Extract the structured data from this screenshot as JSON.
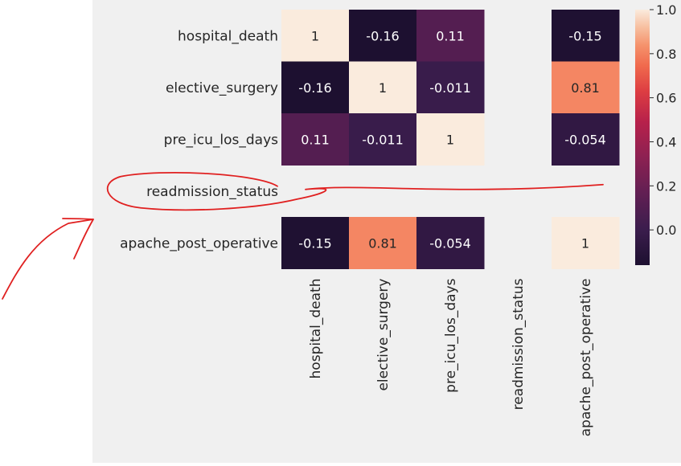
{
  "chart_data": {
    "type": "heatmap",
    "row_labels": [
      "hospital_death",
      "elective_surgery",
      "pre_icu_los_days",
      "readmission_status",
      "apache_post_operative"
    ],
    "col_labels": [
      "hospital_death",
      "elective_surgery",
      "pre_icu_los_days",
      "readmission_status",
      "apache_post_operative"
    ],
    "values": [
      [
        1,
        -0.16,
        0.11,
        null,
        -0.15
      ],
      [
        -0.16,
        1,
        -0.011,
        null,
        0.81
      ],
      [
        0.11,
        -0.011,
        1,
        null,
        -0.054
      ],
      [
        null,
        null,
        null,
        null,
        null
      ],
      [
        -0.15,
        0.81,
        -0.054,
        null,
        1
      ]
    ],
    "annotations": [
      [
        "1",
        "-0.16",
        "0.11",
        "",
        "-0.15"
      ],
      [
        "-0.16",
        "1",
        "-0.011",
        "",
        "0.81"
      ],
      [
        "0.11",
        "-0.011",
        "1",
        "",
        "-0.054"
      ],
      [
        "",
        "",
        "",
        "",
        ""
      ],
      [
        "-0.15",
        "0.81",
        "-0.054",
        "",
        "1"
      ]
    ],
    "colorbar": {
      "range": [
        -0.16,
        1.0
      ],
      "ticks": [
        "1.0",
        "0.8",
        "0.6",
        "0.4",
        "0.2",
        "0.0"
      ],
      "tick_values": [
        1.0,
        0.8,
        0.6,
        0.4,
        0.2,
        0.0
      ],
      "colormap": "rocket"
    },
    "missing_row_highlight": "readmission_status",
    "annotation_color": "#e02020",
    "background_color": "#f0f0f0"
  }
}
